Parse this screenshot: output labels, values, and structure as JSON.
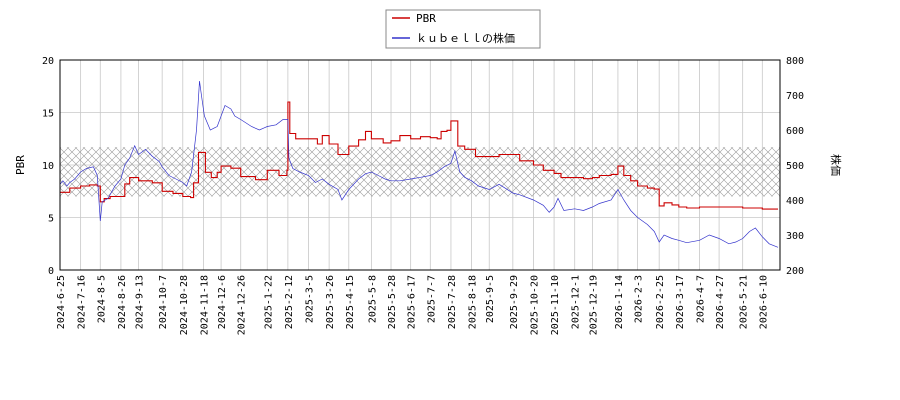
{
  "colors": {
    "pbr": "#cc0000",
    "stock": "#3333cc",
    "grid": "#c8c8c8",
    "band_hatch": "#9a9a9a",
    "frame": "#000000"
  },
  "chart_data": {
    "type": "line",
    "legend": {
      "placement": "top-center",
      "entries": [
        "PBR",
        "ｋｕｂｅｌｌの株価"
      ]
    },
    "grid": true,
    "y_left": {
      "label": "PBR",
      "range": [
        0,
        20
      ],
      "ticks": [
        "0",
        "5",
        "10",
        "15",
        "20"
      ]
    },
    "y_right": {
      "label": "株価",
      "range": [
        200,
        800
      ],
      "ticks": [
        "200",
        "300",
        "400",
        "500",
        "600",
        "700",
        "800"
      ]
    },
    "x": {
      "range": [
        "2024-06-25",
        "2026-06-28"
      ],
      "tick_labels": [
        "2024-6-25",
        "2024-7-16",
        "2024-8-5",
        "2024-8-26",
        "2024-9-13",
        "2024-10-7",
        "2024-10-28",
        "2024-11-18",
        "2024-12-6",
        "2024-12-26",
        "2025-1-22",
        "2025-2-12",
        "2025-3-5",
        "2025-3-26",
        "2025-4-15",
        "2025-5-8",
        "2025-5-28",
        "2025-6-17",
        "2025-7-7",
        "2025-7-28",
        "2025-8-18",
        "2025-9-5",
        "2025-9-29",
        "2025-10-20",
        "2025-11-10",
        "2025-12-1",
        "2025-12-19",
        "2026-1-14",
        "2026-2-3",
        "2026-2-25",
        "2026-3-17",
        "2026-4-7",
        "2026-4-27",
        "2026-5-21",
        "2026-6-10"
      ]
    },
    "band": {
      "axis": "left",
      "from": 7.0,
      "to": 11.7
    },
    "series": [
      {
        "name": "PBR",
        "axis": "left",
        "points": [
          [
            "2024-6-25",
            7.4
          ],
          [
            "2024-7-5",
            7.8
          ],
          [
            "2024-7-16",
            8.0
          ],
          [
            "2024-7-25",
            8.1
          ],
          [
            "2024-8-2",
            8.0
          ],
          [
            "2024-8-5",
            6.5
          ],
          [
            "2024-8-9",
            6.8
          ],
          [
            "2024-8-15",
            7.0
          ],
          [
            "2024-8-26",
            7.0
          ],
          [
            "2024-8-30",
            8.2
          ],
          [
            "2024-9-4",
            8.8
          ],
          [
            "2024-9-13",
            8.5
          ],
          [
            "2024-9-27",
            8.3
          ],
          [
            "2024-10-7",
            7.5
          ],
          [
            "2024-10-18",
            7.3
          ],
          [
            "2024-10-28",
            7.0
          ],
          [
            "2024-11-5",
            6.9
          ],
          [
            "2024-11-8",
            8.3
          ],
          [
            "2024-11-13",
            11.2
          ],
          [
            "2024-11-20",
            9.3
          ],
          [
            "2024-11-26",
            8.8
          ],
          [
            "2024-12-2",
            9.3
          ],
          [
            "2024-12-6",
            9.9
          ],
          [
            "2024-12-16",
            9.7
          ],
          [
            "2024-12-26",
            8.9
          ],
          [
            "2025-1-10",
            8.6
          ],
          [
            "2025-1-22",
            9.5
          ],
          [
            "2025-2-3",
            9.0
          ],
          [
            "2025-2-11",
            9.5
          ],
          [
            "2025-2-12",
            16.0
          ],
          [
            "2025-2-14",
            13.0
          ],
          [
            "2025-2-20",
            12.5
          ],
          [
            "2025-3-5",
            12.5
          ],
          [
            "2025-3-14",
            12.0
          ],
          [
            "2025-3-19",
            12.8
          ],
          [
            "2025-3-26",
            12.0
          ],
          [
            "2025-4-4",
            11.0
          ],
          [
            "2025-4-15",
            11.8
          ],
          [
            "2025-4-25",
            12.4
          ],
          [
            "2025-5-2",
            13.2
          ],
          [
            "2025-5-8",
            12.5
          ],
          [
            "2025-5-20",
            12.1
          ],
          [
            "2025-5-28",
            12.3
          ],
          [
            "2025-6-6",
            12.8
          ],
          [
            "2025-6-17",
            12.5
          ],
          [
            "2025-6-27",
            12.7
          ],
          [
            "2025-7-7",
            12.6
          ],
          [
            "2025-7-14",
            12.5
          ],
          [
            "2025-7-18",
            13.2
          ],
          [
            "2025-7-24",
            13.3
          ],
          [
            "2025-7-28",
            14.2
          ],
          [
            "2025-8-4",
            11.8
          ],
          [
            "2025-8-11",
            11.5
          ],
          [
            "2025-8-18",
            11.5
          ],
          [
            "2025-8-22",
            10.8
          ],
          [
            "2025-9-5",
            10.8
          ],
          [
            "2025-9-15",
            11.0
          ],
          [
            "2025-9-29",
            11.0
          ],
          [
            "2025-10-6",
            10.4
          ],
          [
            "2025-10-20",
            10.0
          ],
          [
            "2025-10-30",
            9.5
          ],
          [
            "2025-11-10",
            9.2
          ],
          [
            "2025-11-17",
            8.8
          ],
          [
            "2025-12-1",
            8.8
          ],
          [
            "2025-12-10",
            8.7
          ],
          [
            "2025-12-19",
            8.8
          ],
          [
            "2025-12-26",
            9.0
          ],
          [
            "2026-1-7",
            9.1
          ],
          [
            "2026-1-14",
            9.9
          ],
          [
            "2026-1-20",
            9.0
          ],
          [
            "2026-1-27",
            8.5
          ],
          [
            "2026-2-3",
            8.0
          ],
          [
            "2026-2-13",
            7.8
          ],
          [
            "2026-2-20",
            7.7
          ],
          [
            "2026-2-25",
            6.1
          ],
          [
            "2026-3-2",
            6.4
          ],
          [
            "2026-3-10",
            6.2
          ],
          [
            "2026-3-17",
            6.0
          ],
          [
            "2026-3-25",
            5.9
          ],
          [
            "2026-4-7",
            6.0
          ],
          [
            "2026-4-27",
            6.0
          ],
          [
            "2026-5-21",
            5.9
          ],
          [
            "2026-6-10",
            5.8
          ],
          [
            "2026-6-26",
            5.8
          ]
        ]
      },
      {
        "name": "ｋｕｂｅｌｌの株価",
        "axis": "right",
        "points": [
          [
            "2024-6-25",
            445
          ],
          [
            "2024-6-28",
            455
          ],
          [
            "2024-7-2",
            440
          ],
          [
            "2024-7-5",
            450
          ],
          [
            "2024-7-10",
            460
          ],
          [
            "2024-7-16",
            480
          ],
          [
            "2024-7-22",
            490
          ],
          [
            "2024-7-29",
            495
          ],
          [
            "2024-8-2",
            470
          ],
          [
            "2024-8-5",
            340
          ],
          [
            "2024-8-7",
            395
          ],
          [
            "2024-8-13",
            405
          ],
          [
            "2024-8-20",
            440
          ],
          [
            "2024-8-26",
            460
          ],
          [
            "2024-8-30",
            500
          ],
          [
            "2024-9-4",
            520
          ],
          [
            "2024-9-9",
            555
          ],
          [
            "2024-9-13",
            530
          ],
          [
            "2024-9-20",
            545
          ],
          [
            "2024-9-27",
            525
          ],
          [
            "2024-10-4",
            510
          ],
          [
            "2024-10-7",
            495
          ],
          [
            "2024-10-14",
            470
          ],
          [
            "2024-10-21",
            460
          ],
          [
            "2024-10-28",
            450
          ],
          [
            "2024-11-1",
            440
          ],
          [
            "2024-11-6",
            480
          ],
          [
            "2024-11-11",
            600
          ],
          [
            "2024-11-14",
            740
          ],
          [
            "2024-11-16",
            700
          ],
          [
            "2024-11-19",
            640
          ],
          [
            "2024-11-25",
            600
          ],
          [
            "2024-12-2",
            610
          ],
          [
            "2024-12-6",
            640
          ],
          [
            "2024-12-10",
            670
          ],
          [
            "2024-12-16",
            660
          ],
          [
            "2024-12-20",
            640
          ],
          [
            "2024-12-26",
            630
          ],
          [
            "2025-1-6",
            610
          ],
          [
            "2025-1-14",
            600
          ],
          [
            "2025-1-22",
            610
          ],
          [
            "2025-1-31",
            615
          ],
          [
            "2025-2-7",
            630
          ],
          [
            "2025-2-12",
            630
          ],
          [
            "2025-2-13",
            520
          ],
          [
            "2025-2-17",
            490
          ],
          [
            "2025-2-24",
            480
          ],
          [
            "2025-3-5",
            470
          ],
          [
            "2025-3-12",
            450
          ],
          [
            "2025-3-19",
            460
          ],
          [
            "2025-3-26",
            445
          ],
          [
            "2025-4-4",
            430
          ],
          [
            "2025-4-8",
            400
          ],
          [
            "2025-4-15",
            430
          ],
          [
            "2025-4-25",
            460
          ],
          [
            "2025-5-2",
            475
          ],
          [
            "2025-5-8",
            480
          ],
          [
            "2025-5-15",
            470
          ],
          [
            "2025-5-22",
            460
          ],
          [
            "2025-5-28",
            455
          ],
          [
            "2025-6-6",
            455
          ],
          [
            "2025-6-17",
            460
          ],
          [
            "2025-6-27",
            465
          ],
          [
            "2025-7-7",
            470
          ],
          [
            "2025-7-14",
            480
          ],
          [
            "2025-7-21",
            495
          ],
          [
            "2025-7-28",
            505
          ],
          [
            "2025-8-1",
            540
          ],
          [
            "2025-8-6",
            480
          ],
          [
            "2025-8-11",
            465
          ],
          [
            "2025-8-18",
            455
          ],
          [
            "2025-8-25",
            440
          ],
          [
            "2025-9-5",
            430
          ],
          [
            "2025-9-15",
            445
          ],
          [
            "2025-9-29",
            420
          ],
          [
            "2025-10-6",
            415
          ],
          [
            "2025-10-20",
            400
          ],
          [
            "2025-10-30",
            385
          ],
          [
            "2025-11-5",
            365
          ],
          [
            "2025-11-10",
            380
          ],
          [
            "2025-11-14",
            405
          ],
          [
            "2025-11-20",
            370
          ],
          [
            "2025-12-1",
            375
          ],
          [
            "2025-12-10",
            370
          ],
          [
            "2025-12-19",
            380
          ],
          [
            "2025-12-26",
            390
          ],
          [
            "2026-1-7",
            400
          ],
          [
            "2026-1-14",
            430
          ],
          [
            "2026-1-20",
            400
          ],
          [
            "2026-1-27",
            370
          ],
          [
            "2026-2-3",
            350
          ],
          [
            "2026-2-13",
            330
          ],
          [
            "2026-2-20",
            310
          ],
          [
            "2026-2-25",
            280
          ],
          [
            "2026-3-2",
            300
          ],
          [
            "2026-3-10",
            290
          ],
          [
            "2026-3-17",
            285
          ],
          [
            "2026-3-25",
            278
          ],
          [
            "2026-4-7",
            285
          ],
          [
            "2026-4-17",
            300
          ],
          [
            "2026-4-27",
            290
          ],
          [
            "2026-5-7",
            275
          ],
          [
            "2026-5-14",
            280
          ],
          [
            "2026-5-21",
            290
          ],
          [
            "2026-5-28",
            310
          ],
          [
            "2026-6-3",
            320
          ],
          [
            "2026-6-10",
            295
          ],
          [
            "2026-6-17",
            275
          ],
          [
            "2026-6-26",
            265
          ]
        ]
      }
    ]
  }
}
